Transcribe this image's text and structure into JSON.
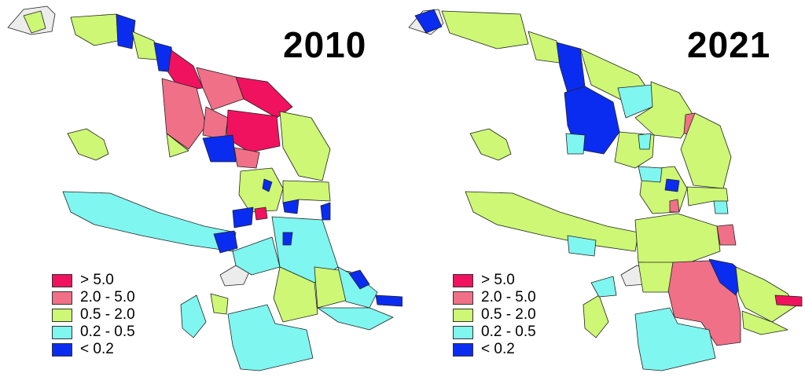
{
  "colors": {
    "gt5": "#f0125e",
    "c2to5": "#f07088",
    "c05to2": "#cdf774",
    "c02to05": "#7ff6f0",
    "lt02": "#0a2cf0",
    "nodata": "#ececec",
    "border": "#222222"
  },
  "legend": [
    {
      "label": "> 5.0",
      "color": "#f0125e"
    },
    {
      "label": "2.0 - 5.0",
      "color": "#f07088"
    },
    {
      "label": "0.5 - 2.0",
      "color": "#cdf774"
    },
    {
      "label": "0.2 - 0.5",
      "color": "#7ff6f0"
    },
    {
      "label": "< 0.2",
      "color": "#0a2cf0"
    }
  ],
  "maps": [
    {
      "year": "2010"
    },
    {
      "year": "2021"
    }
  ]
}
